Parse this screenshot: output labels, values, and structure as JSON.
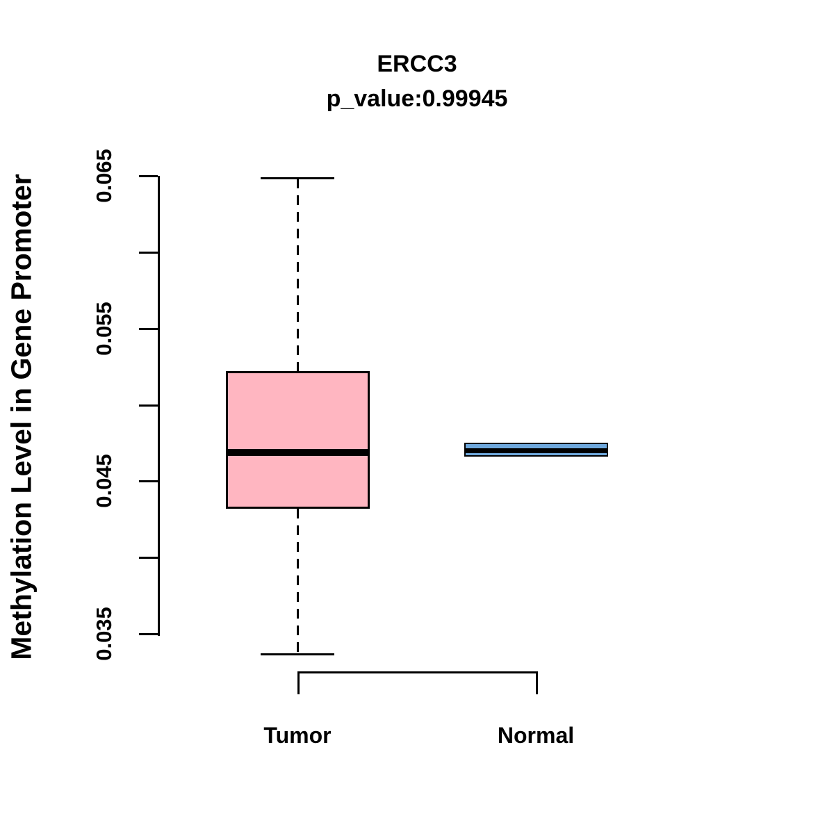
{
  "figure": {
    "title": "ERCC3",
    "subtitle": "p_value:0.99945",
    "ylabel": "Methylation Level in Gene Promoter"
  },
  "chart_data": {
    "type": "boxplot",
    "title": "ERCC3",
    "subtitle": "p_value:0.99945",
    "p_value": 0.99945,
    "xlabel": "",
    "ylabel": "Methylation Level in Gene Promoter",
    "categories": [
      "Tumor",
      "Normal"
    ],
    "ylim": [
      0.035,
      0.065
    ],
    "yticks": [
      0.035,
      0.04,
      0.045,
      0.05,
      0.055,
      0.06,
      0.065
    ],
    "ytick_labels": [
      "0.035",
      "0.045",
      "0.055",
      "0.065"
    ],
    "grid": false,
    "legend": "none",
    "series": [
      {
        "name": "Tumor",
        "color": "#FFB6C1",
        "stats": {
          "min": 0.0337,
          "q1": 0.0432,
          "median": 0.0469,
          "q3": 0.0522,
          "max": 0.0648
        }
      },
      {
        "name": "Normal",
        "color": "#6FA8DC",
        "stats": {
          "min": 0.0466,
          "q1": 0.0466,
          "median": 0.047,
          "q3": 0.0475,
          "max": 0.0475
        }
      }
    ],
    "colors": {
      "box_border": "#000000",
      "median_line": "#000000",
      "background": "#FFFFFF"
    }
  }
}
